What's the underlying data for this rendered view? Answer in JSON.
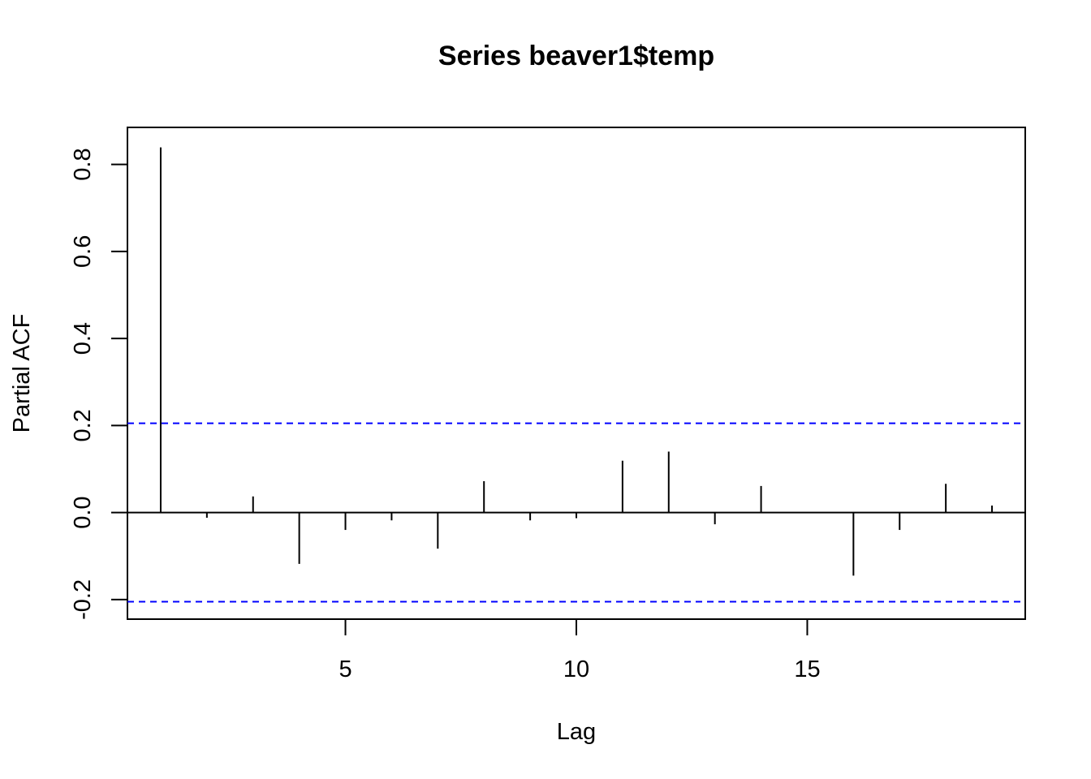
{
  "chart_data": {
    "type": "bar",
    "title": "Series  beaver1$temp",
    "xlabel": "Lag",
    "ylabel": "Partial ACF",
    "xlim": [
      0.28,
      19.72
    ],
    "ylim": [
      -0.245,
      0.885
    ],
    "x_ticks": [
      5,
      10,
      15
    ],
    "x_tick_labels": [
      "5",
      "10",
      "15"
    ],
    "y_ticks": [
      -0.2,
      0.0,
      0.2,
      0.4,
      0.6,
      0.8
    ],
    "y_tick_labels": [
      "-0.2",
      "0.0",
      "0.2",
      "0.4",
      "0.6",
      "0.8"
    ],
    "lags": [
      1,
      2,
      3,
      4,
      5,
      6,
      7,
      8,
      9,
      10,
      11,
      12,
      13,
      14,
      15,
      16,
      17,
      18,
      19
    ],
    "values": [
      0.839,
      -0.012,
      0.037,
      -0.118,
      -0.04,
      -0.018,
      -0.083,
      0.072,
      -0.018,
      -0.013,
      0.119,
      0.14,
      -0.027,
      0.061,
      0.001,
      -0.145,
      -0.04,
      0.066,
      0.016
    ],
    "confidence_bounds": [
      0.205,
      -0.205
    ],
    "bar_color": "#000000",
    "bound_color": "#0000ff",
    "grid": false,
    "zero_line": true
  }
}
